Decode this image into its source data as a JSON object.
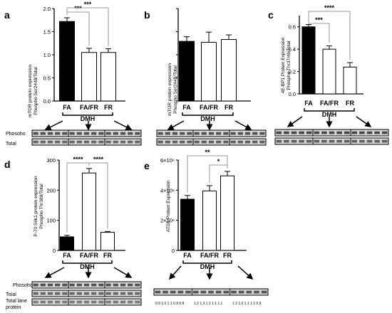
{
  "figure": {
    "panels": {
      "a": {
        "letter": "a",
        "ylabel": [
          "mTOR protein expression",
          "Phospho Ser2448/Total"
        ],
        "yticks": [
          "0.0",
          "0.5",
          "1.0",
          "1.5",
          "2.0"
        ],
        "categories": [
          "FA",
          "FA/FR",
          "FR"
        ],
        "group_label": "DMH",
        "significance": [
          "***",
          "***"
        ],
        "blot_labels": [
          "Phosoho",
          "Total"
        ]
      },
      "b": {
        "letter": "b",
        "ylabel": [
          "mTOR protein expression",
          "Phospho Ser2448/Total"
        ],
        "categories": [
          "FA",
          "FA/FR",
          "FR"
        ],
        "group_label": "DMH"
      },
      "c": {
        "letter": "c",
        "ylabel": [
          "4E-BP1 Protein Expression",
          "Phospho Thr37/46/Total"
        ],
        "yticks": [
          "0.0",
          "0.2",
          "0.4",
          "0.6"
        ],
        "categories": [
          "FA",
          "FA/FR",
          "FR"
        ],
        "group_label": "DMH",
        "significance": [
          "****",
          "***"
        ]
      },
      "d": {
        "letter": "d",
        "ylabel": [
          "P-70 S6k1 protein expression",
          "Phospho Thr389/Total"
        ],
        "yticks": [
          "0",
          "100",
          "200",
          "300"
        ],
        "categories": [
          "FA",
          "FA/FR",
          "FR"
        ],
        "group_label": "DMH",
        "significance": [
          "****",
          "****"
        ],
        "blot_labels": [
          "Phosoho",
          "Total",
          "Total lane",
          "protein"
        ]
      },
      "e": {
        "letter": "e",
        "ylabel": [
          "ATG5 Protein Expression"
        ],
        "yticks": [
          "0",
          "2×10⁶",
          "4×10⁶",
          "6×10⁶"
        ],
        "categories": [
          "FA",
          "FA/FR",
          "FR"
        ],
        "group_label": "DMH",
        "significance": [
          "**",
          "*"
        ],
        "blot_numbers": [
          "0.9 1.0 1.1 0.9 0.9",
          "1.2 1.3 1.1 1.1 1.1",
          "1.2 1.0 1.1 1.1 0.9"
        ]
      }
    },
    "colors": {
      "fa_bar": "#000000",
      "other_bar": "#ffffff",
      "axis": "#000000",
      "bracket": "#9a9a9a"
    }
  },
  "chart_data": [
    {
      "panel": "a",
      "type": "bar",
      "categories": [
        "FA",
        "FA/FR",
        "FR"
      ],
      "values": [
        1.72,
        1.05,
        1.05
      ],
      "errors": [
        0.08,
        0.09,
        0.08
      ],
      "ylim": [
        0,
        2.0
      ],
      "comparisons": [
        {
          "from": "FA",
          "to": "FA/FR",
          "label": "***"
        },
        {
          "from": "FA",
          "to": "FR",
          "label": "***"
        }
      ]
    },
    {
      "panel": "b",
      "type": "bar",
      "categories": [
        "FA",
        "FA/FR",
        "FR"
      ],
      "values": [
        1.29,
        1.27,
        1.33
      ],
      "errors": [
        0.1,
        0.22,
        0.1
      ],
      "ylim": [
        0,
        2.0
      ]
    },
    {
      "panel": "c",
      "type": "bar",
      "categories": [
        "FA",
        "FA/FR",
        "FR"
      ],
      "values": [
        0.6,
        0.4,
        0.24
      ],
      "errors": [
        0.02,
        0.03,
        0.04
      ],
      "ylim": [
        0,
        0.7
      ],
      "comparisons": [
        {
          "from": "FA",
          "to": "FA/FR",
          "label": "***"
        },
        {
          "from": "FA",
          "to": "FR",
          "label": "****"
        }
      ]
    },
    {
      "panel": "d",
      "type": "bar",
      "categories": [
        "FA",
        "FA/FR",
        "FR"
      ],
      "values": [
        45,
        257,
        60
      ],
      "errors": [
        5,
        15,
        3
      ],
      "ylim": [
        0,
        300
      ],
      "comparisons": [
        {
          "from": "FA",
          "to": "FA/FR",
          "label": "****"
        },
        {
          "from": "FA/FR",
          "to": "FR",
          "label": "****"
        }
      ]
    },
    {
      "panel": "e",
      "type": "bar",
      "categories": [
        "FA",
        "FA/FR",
        "FR"
      ],
      "values": [
        3400000,
        3950000,
        4950000
      ],
      "errors": [
        250000,
        350000,
        300000
      ],
      "ylim": [
        0,
        6000000
      ],
      "comparisons": [
        {
          "from": "FA",
          "to": "FR",
          "label": "**"
        },
        {
          "from": "FA/FR",
          "to": "FR",
          "label": "*"
        }
      ]
    }
  ]
}
